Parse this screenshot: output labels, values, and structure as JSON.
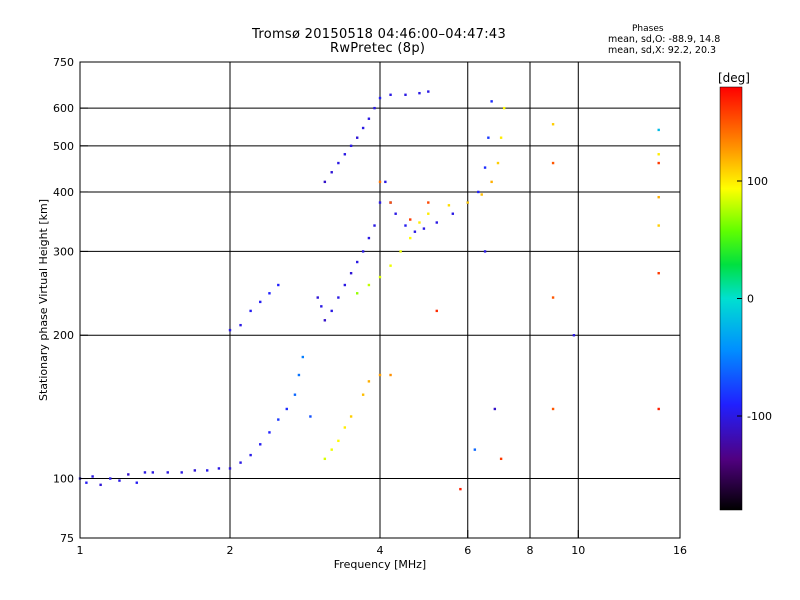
{
  "header": {
    "title": "Tromsø 20150518 04:46:00–04:47:43",
    "subtitle": "RwPretec (8p)",
    "phase_stats": {
      "heading": "Phases",
      "line_o": "mean, sd,O: -88.9, 14.8",
      "line_x": "mean, sd,X: 92.2, 20.3"
    }
  },
  "colorbar": {
    "label": "[deg]",
    "ticks": [
      "100",
      "0",
      "-100"
    ],
    "tick_values": [
      100,
      0,
      -100
    ],
    "range": [
      -180,
      180
    ],
    "palette": "rainbow"
  },
  "chart_data": {
    "type": "scatter",
    "xlabel": "Frequency [MHz]",
    "ylabel": "Stationary phase Virtual Height [km]",
    "xscale": "log",
    "yscale": "log",
    "xlim": [
      1,
      16
    ],
    "ylim": [
      75,
      750
    ],
    "xticks": [
      1,
      2,
      4,
      6,
      8,
      10,
      16
    ],
    "xtick_labels": [
      "1",
      "2",
      "4",
      "6",
      "8",
      "10",
      "16"
    ],
    "yticks": [
      75,
      100,
      200,
      300,
      400,
      500,
      600,
      750
    ],
    "ytick_labels": [
      "75",
      "100",
      "200",
      "300",
      "400",
      "500",
      "600",
      "750"
    ],
    "grid_x": [
      2,
      4,
      6,
      8,
      10
    ],
    "grid_y": [
      100,
      200,
      300,
      400,
      500,
      600
    ],
    "grid": true,
    "color_variable": "phase [deg]",
    "series": [
      {
        "points": [
          [
            1.0,
            100,
            -100
          ],
          [
            1.03,
            98,
            -95
          ],
          [
            1.06,
            101,
            -100
          ],
          [
            1.1,
            97,
            -105
          ],
          [
            1.15,
            100,
            -98
          ],
          [
            1.2,
            99,
            -100
          ],
          [
            1.25,
            102,
            -110
          ],
          [
            1.3,
            98,
            -95
          ],
          [
            1.35,
            103,
            -100
          ],
          [
            1.4,
            103,
            -100
          ],
          [
            1.5,
            103,
            -102
          ],
          [
            1.6,
            103,
            -100
          ],
          [
            1.7,
            104,
            -105
          ],
          [
            1.8,
            104,
            -98
          ],
          [
            1.9,
            105,
            -100
          ],
          [
            2.0,
            105,
            -105
          ],
          [
            2.1,
            108,
            -100
          ],
          [
            2.2,
            112,
            -98
          ],
          [
            2.3,
            118,
            -95
          ],
          [
            2.4,
            125,
            -90
          ],
          [
            2.5,
            133,
            -80
          ],
          [
            2.6,
            140,
            -85
          ],
          [
            2.7,
            150,
            -60
          ],
          [
            2.75,
            165,
            -55
          ],
          [
            2.8,
            180,
            -50
          ],
          [
            2.9,
            135,
            -70
          ]
        ]
      },
      {
        "points": [
          [
            2.0,
            205,
            -100
          ],
          [
            2.1,
            210,
            -100
          ],
          [
            2.2,
            225,
            -95
          ],
          [
            2.3,
            235,
            -95
          ],
          [
            2.4,
            245,
            -90
          ],
          [
            2.5,
            255,
            -90
          ]
        ]
      },
      {
        "points": [
          [
            3.0,
            240,
            -105
          ],
          [
            3.05,
            230,
            -100
          ],
          [
            3.1,
            215,
            -110
          ],
          [
            3.2,
            225,
            -100
          ],
          [
            3.3,
            240,
            -100
          ],
          [
            3.4,
            255,
            -100
          ],
          [
            3.5,
            270,
            -105
          ],
          [
            3.6,
            285,
            -100
          ],
          [
            3.7,
            300,
            -100
          ],
          [
            3.8,
            320,
            -100
          ],
          [
            3.9,
            340,
            -100
          ],
          [
            4.0,
            380,
            -100
          ],
          [
            4.1,
            420,
            -100
          ],
          [
            4.2,
            380,
            -105
          ],
          [
            4.3,
            360,
            -100
          ],
          [
            4.5,
            340,
            -95
          ],
          [
            4.7,
            330,
            -100
          ],
          [
            4.9,
            335,
            -100
          ],
          [
            5.2,
            345,
            -100
          ],
          [
            5.6,
            360,
            -100
          ],
          [
            6.0,
            380,
            -95
          ],
          [
            6.3,
            400,
            -90
          ],
          [
            6.5,
            450,
            -85
          ],
          [
            6.6,
            520,
            -80
          ],
          [
            6.7,
            620,
            -85
          ]
        ]
      },
      {
        "points": [
          [
            3.1,
            420,
            -110
          ],
          [
            3.2,
            440,
            -105
          ],
          [
            3.3,
            460,
            -100
          ],
          [
            3.4,
            480,
            -100
          ],
          [
            3.5,
            500,
            -100
          ],
          [
            3.6,
            520,
            -105
          ],
          [
            3.7,
            545,
            -100
          ],
          [
            3.8,
            570,
            -100
          ],
          [
            3.9,
            600,
            -100
          ],
          [
            4.0,
            630,
            -95
          ],
          [
            4.2,
            640,
            -100
          ],
          [
            4.5,
            640,
            -100
          ],
          [
            4.8,
            645,
            -100
          ],
          [
            5.0,
            650,
            -100
          ]
        ]
      },
      {
        "points": [
          [
            3.6,
            245,
            70
          ],
          [
            3.8,
            255,
            80
          ],
          [
            4.0,
            265,
            85
          ],
          [
            4.2,
            280,
            90
          ],
          [
            4.4,
            300,
            90
          ],
          [
            4.6,
            320,
            95
          ],
          [
            4.8,
            345,
            100
          ],
          [
            5.0,
            360,
            100
          ],
          [
            5.5,
            375,
            105
          ],
          [
            6.0,
            380,
            110
          ],
          [
            6.4,
            395,
            115
          ],
          [
            6.7,
            420,
            120
          ],
          [
            6.9,
            460,
            110
          ],
          [
            7.0,
            520,
            100
          ],
          [
            7.1,
            600,
            95
          ]
        ]
      },
      {
        "points": [
          [
            3.1,
            110,
            85
          ],
          [
            3.2,
            115,
            90
          ],
          [
            3.3,
            120,
            95
          ],
          [
            3.4,
            128,
            100
          ],
          [
            3.5,
            135,
            110
          ],
          [
            3.7,
            150,
            115
          ],
          [
            3.8,
            160,
            120
          ],
          [
            4.0,
            165,
            125
          ],
          [
            4.2,
            165,
            130
          ]
        ]
      },
      {
        "points": [
          [
            4.0,
            420,
            140
          ],
          [
            4.2,
            380,
            150
          ],
          [
            4.6,
            350,
            160
          ],
          [
            5.0,
            380,
            155
          ],
          [
            5.2,
            225,
            165
          ],
          [
            5.8,
            95,
            170
          ],
          [
            6.2,
            115,
            -60
          ],
          [
            6.8,
            140,
            -110
          ],
          [
            7.0,
            110,
            160
          ],
          [
            8.9,
            140,
            150
          ],
          [
            8.9,
            460,
            150
          ],
          [
            8.9,
            555,
            110
          ],
          [
            9.8,
            200,
            -100
          ],
          [
            14.5,
            140,
            170
          ],
          [
            14.5,
            270,
            160
          ],
          [
            14.5,
            340,
            110
          ],
          [
            14.5,
            390,
            120
          ],
          [
            14.5,
            480,
            100
          ],
          [
            14.5,
            540,
            -20
          ],
          [
            14.5,
            460,
            160
          ],
          [
            8.9,
            240,
            150
          ],
          [
            6.5,
            300,
            -100
          ]
        ]
      }
    ]
  }
}
